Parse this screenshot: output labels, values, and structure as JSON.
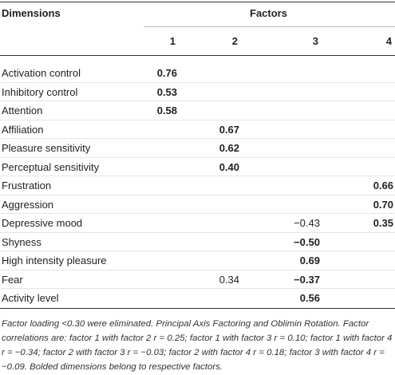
{
  "table": {
    "header": {
      "dimensions": "Dimensions",
      "factors": "Factors",
      "columns": [
        "1",
        "2",
        "3",
        "4"
      ]
    },
    "rows": [
      [
        {
          "text": "Activation control"
        },
        {
          "text": "0.76",
          "bold": true
        },
        null,
        null,
        null
      ],
      [
        {
          "text": "Inhibitory control"
        },
        {
          "text": "0.53",
          "bold": true
        },
        null,
        null,
        null
      ],
      [
        {
          "text": "Attention"
        },
        {
          "text": "0.58",
          "bold": true
        },
        null,
        null,
        null
      ],
      [
        {
          "text": "Affiliation"
        },
        null,
        {
          "text": "0.67",
          "bold": true
        },
        null,
        null
      ],
      [
        {
          "text": "Pleasure sensitivity"
        },
        null,
        {
          "text": "0.62",
          "bold": true
        },
        null,
        null
      ],
      [
        {
          "text": "Perceptual sensitivity"
        },
        null,
        {
          "text": "0.40",
          "bold": true
        },
        null,
        null
      ],
      [
        {
          "text": "Frustration"
        },
        null,
        null,
        null,
        {
          "text": "0.66",
          "bold": true
        }
      ],
      [
        {
          "text": "Aggression"
        },
        null,
        null,
        null,
        {
          "text": "0.70",
          "bold": true
        }
      ],
      [
        {
          "text": "Depressive mood"
        },
        null,
        null,
        {
          "text": "−0.43",
          "bold": false
        },
        {
          "text": "0.35",
          "bold": true
        }
      ],
      [
        {
          "text": "Shyness"
        },
        null,
        null,
        {
          "text": "−0.50",
          "bold": true
        },
        null
      ],
      [
        {
          "text": "High intensity pleasure"
        },
        null,
        null,
        {
          "text": "0.69",
          "bold": true
        },
        null
      ],
      [
        {
          "text": "Fear"
        },
        null,
        {
          "text": "0.34",
          "bold": false
        },
        {
          "text": "−0.37",
          "bold": true
        },
        null
      ],
      [
        {
          "text": "Activity level"
        },
        null,
        null,
        {
          "text": "0.56",
          "bold": true
        },
        null
      ]
    ],
    "footnote": "Factor loading <0.30 were eliminated. Principal Axis Factoring and Oblimin Rotation. Factor correlations are: factor 1 with factor 2 r = 0.25; factor 1 with factor 3 r = 0.10; factor 1 with factor 4 r = −0.34; factor 2 with factor 3 r = −0.03; factor 2 with factor 4 r = 0.18; factor 3 with factor 4 r = −0.09. Bolded dimensions belong to respective factors."
  }
}
